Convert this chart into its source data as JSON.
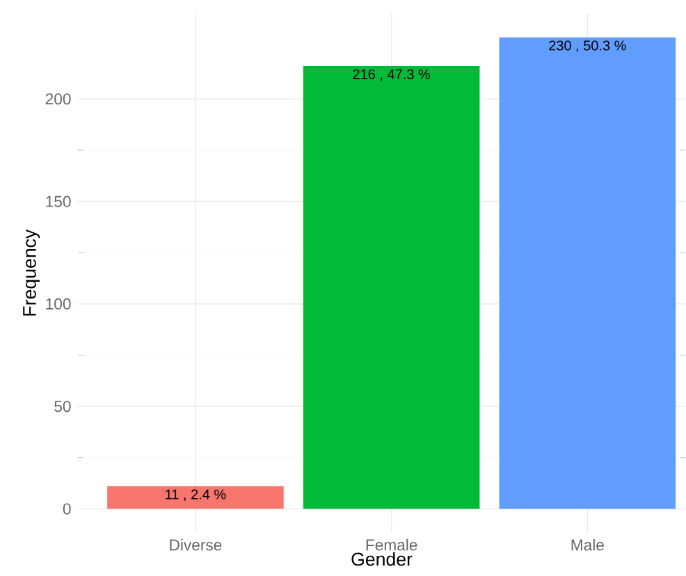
{
  "chart_data": {
    "type": "bar",
    "xlabel": "Gender",
    "ylabel": "Frequency",
    "categories": [
      "Diverse",
      "Female",
      "Male"
    ],
    "values": [
      11,
      216,
      230
    ],
    "colors": [
      "#f8766d",
      "#00ba38",
      "#619cff"
    ],
    "value_labels": [
      "11 , 2.4 %",
      "216 , 47.3 %",
      "230 , 50.3 %"
    ],
    "ylim": [
      -11.5,
      241.5
    ],
    "yticks": [
      0,
      50,
      100,
      150,
      200
    ],
    "grid": true
  }
}
